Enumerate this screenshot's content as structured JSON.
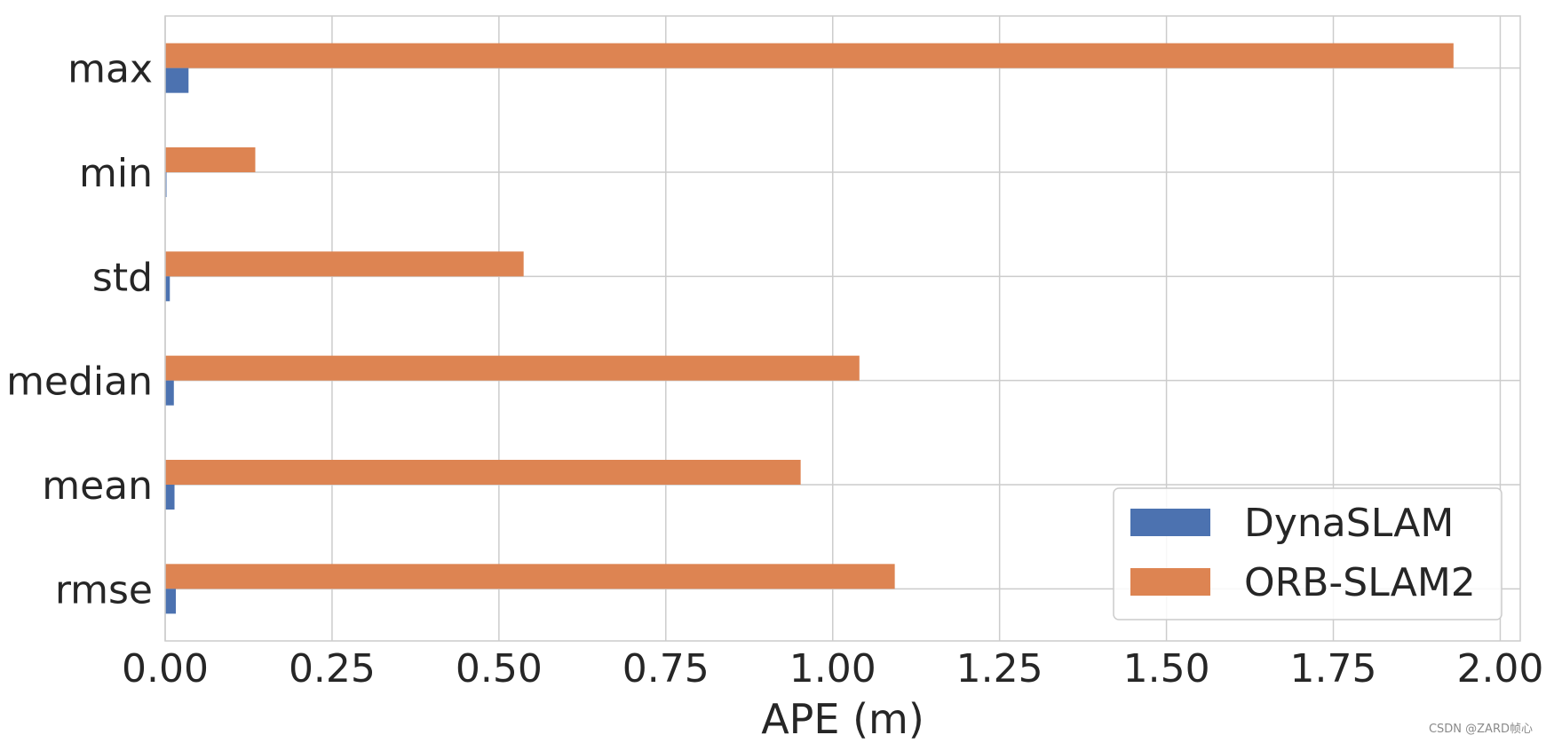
{
  "chart_data": {
    "type": "bar",
    "orientation": "horizontal",
    "categories": [
      "max",
      "min",
      "std",
      "median",
      "mean",
      "rmse"
    ],
    "series": [
      {
        "name": "DynaSLAM",
        "color": "#4c72b0",
        "values": [
          0.035,
          0.002,
          0.007,
          0.013,
          0.014,
          0.016
        ]
      },
      {
        "name": "ORB-SLAM2",
        "color": "#dd8452",
        "values": [
          1.93,
          0.135,
          0.537,
          1.04,
          0.952,
          1.093
        ]
      }
    ],
    "xlabel": "APE (m)",
    "ylabel": "",
    "xlim": [
      0,
      2.03
    ],
    "xticks": [
      0.0,
      0.25,
      0.5,
      0.75,
      1.0,
      1.25,
      1.5,
      1.75,
      2.0
    ],
    "xtick_labels": [
      "0.00",
      "0.25",
      "0.50",
      "0.75",
      "1.00",
      "1.25",
      "1.50",
      "1.75",
      "2.00"
    ],
    "grid": true,
    "legend_position": "bottom-right"
  },
  "watermark": "CSDN @ZARD帧心"
}
